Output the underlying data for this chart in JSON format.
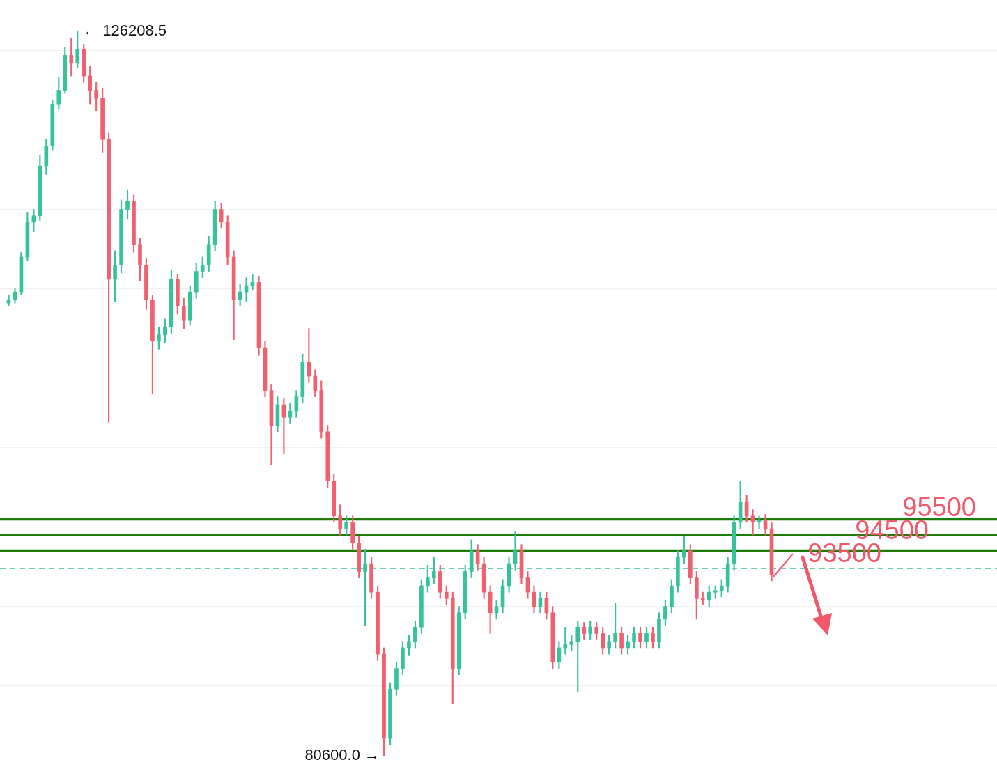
{
  "chart_data": {
    "type": "candlestick",
    "categories": [
      null,
      null,
      null,
      null,
      null,
      null,
      null,
      null,
      null,
      null,
      null,
      null,
      null,
      null,
      null,
      null,
      null,
      null,
      null,
      null,
      null,
      null,
      null,
      null,
      null,
      null,
      null,
      null,
      null,
      null,
      null,
      null,
      null,
      null,
      null,
      null,
      null,
      null,
      null,
      null,
      null,
      null,
      null,
      null,
      null,
      null,
      null,
      null,
      null,
      null,
      null,
      null,
      null,
      null,
      null,
      null,
      null,
      null,
      null,
      null,
      null,
      null,
      null,
      null,
      null,
      null,
      null,
      null,
      null,
      null,
      null,
      null,
      null,
      null,
      null,
      null,
      null,
      null,
      null,
      null,
      null,
      null,
      null,
      null,
      null,
      null,
      null,
      null,
      null,
      null,
      null,
      null,
      null,
      null,
      null,
      null,
      null,
      null,
      null,
      null,
      null,
      null,
      null,
      null,
      null,
      null,
      null,
      null,
      null,
      null,
      null,
      null,
      null,
      null,
      null,
      null,
      null,
      null,
      null,
      null,
      null,
      null,
      null
    ],
    "ohlc": [
      [
        109100,
        109600,
        108900,
        109300
      ],
      [
        109300,
        110000,
        109100,
        109800
      ],
      [
        109800,
        112300,
        109600,
        112000
      ],
      [
        112000,
        114800,
        111800,
        114200
      ],
      [
        114200,
        115000,
        113600,
        114600
      ],
      [
        114600,
        118400,
        114300,
        117700
      ],
      [
        117700,
        119400,
        117200,
        119000
      ],
      [
        119000,
        121900,
        118700,
        121600
      ],
      [
        121600,
        123300,
        121300,
        122500
      ],
      [
        122500,
        125200,
        122300,
        124700
      ],
      [
        124700,
        125800,
        123400,
        124200
      ],
      [
        124200,
        126208.5,
        123900,
        125100
      ],
      [
        125100,
        125400,
        123000,
        123400
      ],
      [
        123400,
        124000,
        121600,
        122500
      ],
      [
        122500,
        123000,
        121200,
        122000
      ],
      [
        122000,
        122600,
        118600,
        119400
      ],
      [
        119400,
        119800,
        101600,
        110600
      ],
      [
        110600,
        112400,
        109200,
        111500
      ],
      [
        111500,
        115600,
        111000,
        115000
      ],
      [
        115000,
        116200,
        114400,
        115500
      ],
      [
        115500,
        115900,
        112300,
        112800
      ],
      [
        112800,
        113200,
        110500,
        111500
      ],
      [
        111500,
        111900,
        108700,
        109300
      ],
      [
        109300,
        109600,
        103400,
        106700
      ],
      [
        106700,
        107600,
        106200,
        107100
      ],
      [
        107100,
        108100,
        106600,
        107600
      ],
      [
        107600,
        111200,
        107200,
        110600
      ],
      [
        110600,
        110900,
        108400,
        108900
      ],
      [
        108900,
        109400,
        107500,
        108000
      ],
      [
        108000,
        110200,
        107700,
        109800
      ],
      [
        109800,
        111600,
        109400,
        111100
      ],
      [
        111100,
        112000,
        110700,
        111500
      ],
      [
        111500,
        113300,
        111100,
        112800
      ],
      [
        112800,
        115500,
        112400,
        115000
      ],
      [
        115000,
        115400,
        113800,
        114200
      ],
      [
        114200,
        114600,
        111500,
        112000
      ],
      [
        112000,
        112400,
        106800,
        109300
      ],
      [
        109300,
        110300,
        108900,
        109800
      ],
      [
        109800,
        110700,
        109200,
        110200
      ],
      [
        110200,
        110900,
        109900,
        110400
      ],
      [
        110400,
        110800,
        105800,
        106300
      ],
      [
        106300,
        106700,
        103200,
        103600
      ],
      [
        103600,
        104000,
        98900,
        101400
      ],
      [
        101400,
        103200,
        101000,
        102700
      ],
      [
        102700,
        103100,
        99600,
        101900
      ],
      [
        101900,
        102800,
        101500,
        102300
      ],
      [
        102300,
        103600,
        101900,
        103200
      ],
      [
        103200,
        105900,
        102800,
        105400
      ],
      [
        105400,
        107500,
        104100,
        104500
      ],
      [
        104500,
        104900,
        103200,
        103600
      ],
      [
        103600,
        104200,
        100600,
        101000
      ],
      [
        101000,
        101400,
        97500,
        97900
      ],
      [
        97900,
        98300,
        95300,
        95700
      ],
      [
        95700,
        96400,
        94500,
        94900
      ],
      [
        94900,
        95700,
        94500,
        95300
      ],
      [
        95300,
        95700,
        93600,
        94000
      ],
      [
        94000,
        94400,
        91800,
        92200
      ],
      [
        92200,
        93600,
        88800,
        92700
      ],
      [
        92700,
        93100,
        90500,
        90900
      ],
      [
        90900,
        91300,
        86600,
        87000
      ],
      [
        87000,
        87400,
        80600,
        81700
      ],
      [
        81700,
        85200,
        81300,
        84800
      ],
      [
        84800,
        86500,
        84400,
        86100
      ],
      [
        86100,
        87800,
        85700,
        87400
      ],
      [
        87400,
        88200,
        86900,
        87800
      ],
      [
        87800,
        89100,
        87400,
        88700
      ],
      [
        88700,
        91700,
        88300,
        91300
      ],
      [
        91300,
        92600,
        90900,
        91800
      ],
      [
        91800,
        93100,
        91400,
        92200
      ],
      [
        92200,
        92600,
        90500,
        90900
      ],
      [
        90900,
        91300,
        90100,
        90500
      ],
      [
        90500,
        90900,
        83900,
        86100
      ],
      [
        86100,
        90000,
        85700,
        89600
      ],
      [
        89600,
        92600,
        89200,
        92200
      ],
      [
        92200,
        94200,
        91800,
        93500
      ],
      [
        93500,
        93900,
        92300,
        92700
      ],
      [
        92700,
        93100,
        90500,
        90900
      ],
      [
        90900,
        91300,
        88300,
        89600
      ],
      [
        89600,
        90400,
        89200,
        90000
      ],
      [
        90000,
        91700,
        89600,
        91300
      ],
      [
        91300,
        93100,
        90900,
        92700
      ],
      [
        92700,
        94700,
        92300,
        93500
      ],
      [
        93500,
        93900,
        91400,
        91800
      ],
      [
        91800,
        92200,
        90500,
        90900
      ],
      [
        90900,
        91300,
        89600,
        90000
      ],
      [
        90000,
        90900,
        89600,
        90500
      ],
      [
        90500,
        90900,
        89200,
        89600
      ],
      [
        89600,
        90000,
        86100,
        86500
      ],
      [
        86500,
        87800,
        86100,
        87400
      ],
      [
        87400,
        88700,
        87000,
        87600
      ],
      [
        87600,
        88200,
        87200,
        87800
      ],
      [
        87800,
        89100,
        84600,
        88700
      ],
      [
        88700,
        89000,
        87900,
        88300
      ],
      [
        88300,
        89100,
        87900,
        88700
      ],
      [
        88700,
        89000,
        87900,
        88300
      ],
      [
        88300,
        88700,
        87000,
        87400
      ],
      [
        87400,
        88200,
        87000,
        87800
      ],
      [
        87800,
        90200,
        87400,
        88300
      ],
      [
        88300,
        88700,
        87000,
        87400
      ],
      [
        87400,
        88200,
        87000,
        87800
      ],
      [
        87800,
        88700,
        87400,
        88300
      ],
      [
        88300,
        88700,
        87400,
        87800
      ],
      [
        87800,
        88700,
        87400,
        88300
      ],
      [
        88300,
        88700,
        87400,
        87800
      ],
      [
        87800,
        89600,
        87400,
        89200
      ],
      [
        89200,
        90400,
        88800,
        90000
      ],
      [
        90000,
        91700,
        89600,
        91300
      ],
      [
        91300,
        93500,
        90900,
        93100
      ],
      [
        93100,
        94400,
        92700,
        93500
      ],
      [
        93500,
        93900,
        91400,
        91800
      ],
      [
        91800,
        92200,
        89200,
        90500
      ],
      [
        90500,
        90900,
        90100,
        90400
      ],
      [
        90400,
        91300,
        90000,
        90900
      ],
      [
        90900,
        91300,
        90500,
        91000
      ],
      [
        91000,
        91700,
        90600,
        91300
      ],
      [
        91300,
        93100,
        90900,
        92700
      ],
      [
        92700,
        95700,
        92300,
        95300
      ],
      [
        95300,
        97900,
        94900,
        96600
      ],
      [
        96600,
        97000,
        95300,
        95700
      ],
      [
        95700,
        96100,
        94500,
        95300
      ],
      [
        95300,
        95700,
        94900,
        95400
      ],
      [
        95400,
        95800,
        94500,
        94900
      ],
      [
        94900,
        95300,
        91600,
        92000
      ]
    ],
    "yticks": [
      {
        "value": 85000,
        "label": null
      },
      {
        "value": 90000,
        "label": null
      },
      {
        "value": 95000,
        "label": null
      },
      {
        "value": 100000,
        "label": null
      },
      {
        "value": 105000,
        "label": null
      },
      {
        "value": 110000,
        "label": null
      },
      {
        "value": 115000,
        "label": null
      },
      {
        "value": 120000,
        "label": null
      },
      {
        "value": 125000,
        "label": null
      }
    ],
    "grid": "y",
    "tick_labels": false,
    "legend": false,
    "ref_lines": [
      {
        "axis": "y",
        "value": 95500,
        "label": "95500",
        "color": "#1e7b0a"
      },
      {
        "axis": "y",
        "value": 94500,
        "label": "94500",
        "color": "#1e7b0a"
      },
      {
        "axis": "y",
        "value": 93500,
        "label": "93500",
        "color": "#1e7b0a"
      },
      {
        "axis": "y",
        "value": 92400,
        "color": "#36c29b",
        "line_style": "dashed"
      }
    ],
    "annotations": [
      "← 126208.5",
      "80600.0 →"
    ]
  }
}
